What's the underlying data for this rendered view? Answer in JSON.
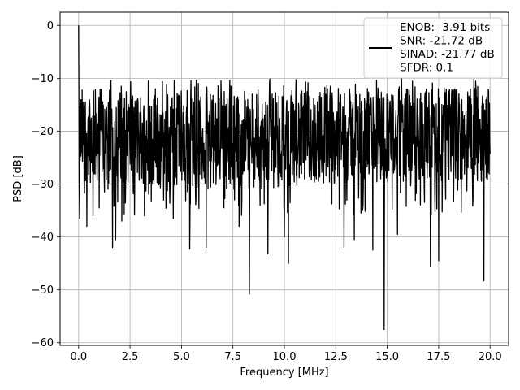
{
  "chart_data": {
    "type": "line",
    "title": "",
    "xlabel": "Frequency [MHz]",
    "ylabel": "PSD [dB]",
    "xlim": [
      -0.9,
      20.9
    ],
    "ylim": [
      -60.5,
      2.5
    ],
    "grid": true,
    "legend_position": "top-right",
    "x_ticks": [
      0.0,
      2.5,
      5.0,
      7.5,
      10.0,
      12.5,
      15.0,
      17.5,
      20.0
    ],
    "x_tick_labels": [
      "0.0",
      "2.5",
      "5.0",
      "7.5",
      "10.0",
      "12.5",
      "15.0",
      "17.5",
      "20.0"
    ],
    "y_ticks": [
      0,
      -10,
      -20,
      -30,
      -40,
      -50,
      -60
    ],
    "y_tick_labels": [
      "0",
      "−10",
      "−20",
      "−30",
      "−40",
      "−50",
      "−60"
    ],
    "legend_lines": [
      "ENOB: -3.91 bits",
      "SNR: -21.72 dB",
      "SINAD: -21.77 dB",
      "SFDR: 0.1"
    ],
    "series": [
      {
        "color": "#000000",
        "x_range": [
          0.0,
          20.0
        ],
        "noise_floor_db": -20.5,
        "typical_upper_db": -12,
        "typical_lower_db": -30,
        "peaks": [
          {
            "x": 0.0,
            "y": 0.0
          }
        ],
        "notable_dips": [
          {
            "x": 0.05,
            "y": -36.5
          },
          {
            "x": 0.4,
            "y": -38.0
          },
          {
            "x": 0.7,
            "y": -36.0
          },
          {
            "x": 1.0,
            "y": -34.5
          },
          {
            "x": 1.65,
            "y": -42.0
          },
          {
            "x": 1.8,
            "y": -40.5
          },
          {
            "x": 2.1,
            "y": -37.0
          },
          {
            "x": 3.2,
            "y": -36.0
          },
          {
            "x": 4.6,
            "y": -36.5
          },
          {
            "x": 5.4,
            "y": -42.3
          },
          {
            "x": 6.2,
            "y": -42.0
          },
          {
            "x": 7.8,
            "y": -38.0
          },
          {
            "x": 8.3,
            "y": -50.8
          },
          {
            "x": 9.2,
            "y": -43.2
          },
          {
            "x": 10.0,
            "y": -40.0
          },
          {
            "x": 10.2,
            "y": -45.0
          },
          {
            "x": 12.9,
            "y": -42.0
          },
          {
            "x": 13.4,
            "y": -40.5
          },
          {
            "x": 14.3,
            "y": -42.5
          },
          {
            "x": 14.85,
            "y": -57.5
          },
          {
            "x": 15.5,
            "y": -39.5
          },
          {
            "x": 17.1,
            "y": -45.5
          },
          {
            "x": 17.5,
            "y": -44.5
          },
          {
            "x": 19.7,
            "y": -48.3
          }
        ]
      }
    ]
  }
}
